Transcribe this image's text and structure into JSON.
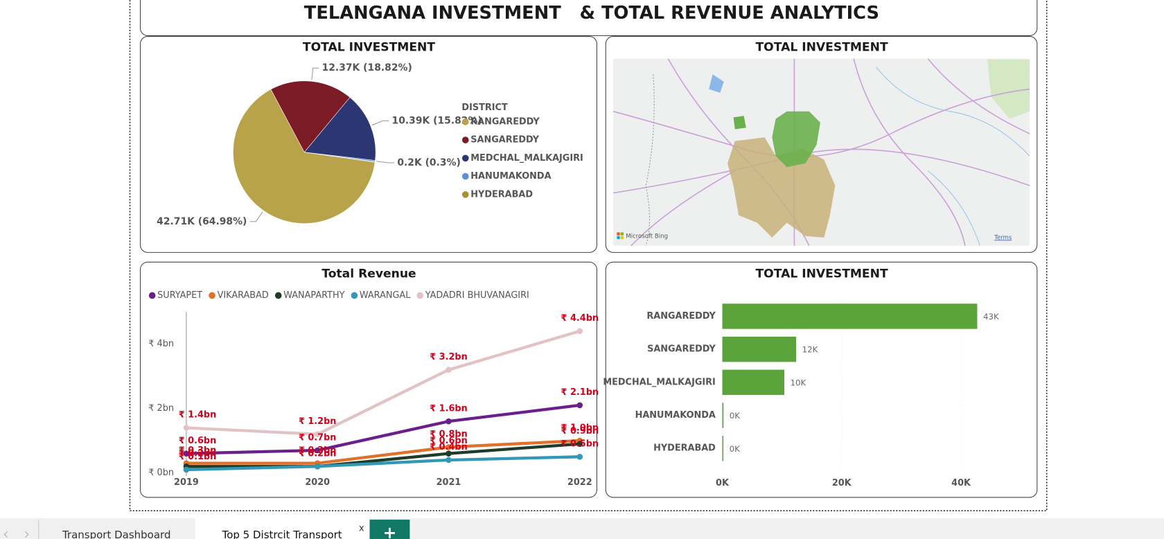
{
  "header": {
    "title": "TELANGANA INVESTMENT   & TOTAL REVENUE ANALYTICS"
  },
  "chart_data": [
    {
      "type": "pie",
      "title": "TOTAL INVESTMENT",
      "legend_title": "DISTRICT",
      "categories": [
        "RANGAREDDY",
        "SANGAREDDY",
        "MEDCHAL_MALKAJGIRI",
        "HANUMAKONDA",
        "HYDERABAD"
      ],
      "values": [
        42.71,
        12.37,
        10.39,
        0.2,
        0.05
      ],
      "value_labels": [
        "42.71K (64.98%)",
        "12.37K (18.82%)",
        "10.39K (15.82%)",
        "0.2K (0.3%)",
        null
      ],
      "colors": [
        "#b9a34a",
        "#7a1b25",
        "#2b3672",
        "#5b8fd6",
        "#a8902c"
      ]
    },
    {
      "type": "line",
      "title": "Total Revenue",
      "categories": [
        "2019",
        "2020",
        "2021",
        "2022"
      ],
      "series": [
        {
          "name": "SURYAPET",
          "color": "#6b1f8a",
          "values": [
            0.6,
            0.7,
            1.6,
            2.1
          ],
          "value_labels": [
            "₹ 0.6bn",
            "₹ 0.7bn",
            "₹ 1.6bn",
            "₹ 2.1bn"
          ]
        },
        {
          "name": "VIKARABAD",
          "color": "#e0702a",
          "values": [
            0.3,
            0.3,
            0.8,
            1.0
          ],
          "value_labels": [
            "₹ 0.3bn",
            "₹ 0.3bn",
            "₹ 0.8bn",
            "₹ 1.0bn"
          ]
        },
        {
          "name": "WANAPARTHY",
          "color": "#1f3b2a",
          "values": [
            0.2,
            0.2,
            0.6,
            0.9
          ],
          "value_labels": [
            "₹ 0.2bn",
            "₹ 0.2bn",
            "₹ 0.6bn",
            "₹ 0.9bn"
          ]
        },
        {
          "name": "WARANGAL",
          "color": "#3198b5",
          "values": [
            0.1,
            0.2,
            0.4,
            0.5
          ],
          "value_labels": [
            "₹ 0.1bn",
            "₹ 0.2bn",
            "₹ 0.4bn",
            "₹ 0.5bn"
          ]
        },
        {
          "name": "YADADRI BHUVANAGIRI",
          "color": "#e3c2c6",
          "values": [
            1.4,
            1.2,
            3.2,
            4.4
          ],
          "value_labels": [
            "₹ 1.4bn",
            "₹ 1.2bn",
            "₹ 3.2bn",
            "₹ 4.4bn"
          ]
        }
      ],
      "ylim": [
        0,
        5
      ],
      "yticks": [
        {
          "value": 0,
          "label": "₹ 0bn"
        },
        {
          "value": 2,
          "label": "₹ 2bn"
        },
        {
          "value": 4,
          "label": "₹ 4bn"
        }
      ]
    },
    {
      "type": "bar",
      "orientation": "horizontal",
      "title": "TOTAL INVESTMENT",
      "categories": [
        "RANGAREDDY",
        "SANGAREDDY",
        "MEDCHAL_MALKAJGIRI",
        "HANUMAKONDA",
        "HYDERABAD"
      ],
      "values": [
        42.71,
        12.37,
        10.39,
        0.2,
        0.05
      ],
      "value_labels": [
        "43K",
        "12K",
        "10K",
        "0K",
        "0K"
      ],
      "color": "#5ba33b",
      "xlim": [
        0,
        50
      ],
      "xticks": [
        {
          "value": 0,
          "label": "0K"
        },
        {
          "value": 20,
          "label": "20K"
        },
        {
          "value": 40,
          "label": "40K"
        }
      ]
    }
  ],
  "map": {
    "title": "TOTAL INVESTMENT",
    "attribution": "Microsoft Bing",
    "terms": "Terms"
  },
  "tabs": {
    "items": [
      "Transport Dashboard",
      "Top 5 Distrcit Transport"
    ],
    "close": "x",
    "add": "+"
  }
}
